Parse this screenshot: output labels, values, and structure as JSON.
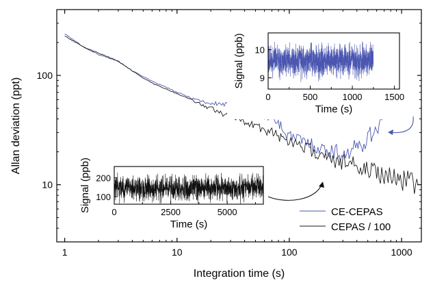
{
  "chart_data": [
    {
      "type": "line",
      "role": "main",
      "xlabel": "Integration time (s)",
      "ylabel": "Allan deviation (ppt)",
      "xscale": "log",
      "yscale": "log",
      "xlim": [
        0.85,
        1500
      ],
      "ylim": [
        3,
        400
      ],
      "xticks": [
        1,
        10,
        100,
        1000
      ],
      "xtick_labels": [
        "1",
        "10",
        "100",
        "1000"
      ],
      "yticks": [
        10,
        100
      ],
      "ytick_labels": [
        "10",
        "100"
      ],
      "legend_position": "bottom-right",
      "grid": false,
      "series": [
        {
          "name": "CE-CEPAS",
          "color": "#4a56b0",
          "x": [
            1,
            1.5,
            2,
            3,
            4,
            5,
            6,
            8,
            10,
            12,
            15,
            18,
            20,
            25,
            30,
            35,
            40,
            50,
            60,
            70,
            80,
            90,
            100,
            120,
            150,
            180,
            200,
            250,
            300,
            350,
            400,
            450,
            500,
            550,
            600,
            650,
            700
          ],
          "y": [
            240,
            180,
            155,
            135,
            110,
            98,
            88,
            78,
            70,
            65,
            60,
            57,
            55,
            55,
            52,
            49,
            47,
            44,
            42,
            40,
            38,
            30,
            28,
            26,
            24,
            22,
            21,
            20,
            19,
            20,
            22,
            24,
            27,
            30,
            34,
            38,
            40
          ]
        },
        {
          "name": "CEPAS / 100",
          "color": "#1a1a1a",
          "x": [
            1,
            1.5,
            2,
            3,
            4,
            5,
            6,
            8,
            10,
            12,
            15,
            18,
            20,
            25,
            30,
            40,
            50,
            60,
            70,
            80,
            90,
            100,
            120,
            150,
            180,
            200,
            250,
            300,
            400,
            500,
            600,
            700,
            800,
            900,
            1000,
            1100,
            1200,
            1300,
            1400
          ],
          "y": [
            230,
            180,
            160,
            135,
            110,
            95,
            85,
            75,
            68,
            63,
            57,
            52,
            50,
            45,
            42,
            38,
            35,
            32,
            30,
            28,
            26,
            25,
            23,
            21,
            19,
            18,
            17,
            16,
            15,
            14,
            13,
            12.5,
            12,
            11.5,
            11,
            11,
            10.5,
            10.5,
            10
          ]
        }
      ]
    },
    {
      "type": "line",
      "role": "inset",
      "xlabel": "Time (s)",
      "ylabel": "Signal (ppb)",
      "xlim": [
        0,
        1560
      ],
      "ylim": [
        8.6,
        10.6
      ],
      "xticks": [
        0,
        500,
        1000,
        1500
      ],
      "xtick_labels": [
        "0",
        "500",
        "1000",
        "1500"
      ],
      "yticks": [
        9,
        10
      ],
      "ytick_labels": [
        "9",
        "10"
      ],
      "series": [
        {
          "name": "CE-CEPAS",
          "color": "#4a56b0",
          "t_end": 1250,
          "mean": 9.6,
          "spread": 0.8
        }
      ]
    },
    {
      "type": "line",
      "role": "inset",
      "xlabel": "Time (s)",
      "ylabel": "Signal (ppb)",
      "xlim": [
        0,
        6600
      ],
      "ylim": [
        60,
        260
      ],
      "xticks": [
        0,
        2500,
        5000
      ],
      "xtick_labels": [
        "0",
        "2500",
        "5000"
      ],
      "yticks": [
        100,
        200
      ],
      "ytick_labels": [
        "100",
        "200"
      ],
      "series": [
        {
          "name": "CEPAS",
          "color": "#111111",
          "t_end": 6600,
          "mean": 145,
          "spread": 95
        }
      ]
    }
  ]
}
